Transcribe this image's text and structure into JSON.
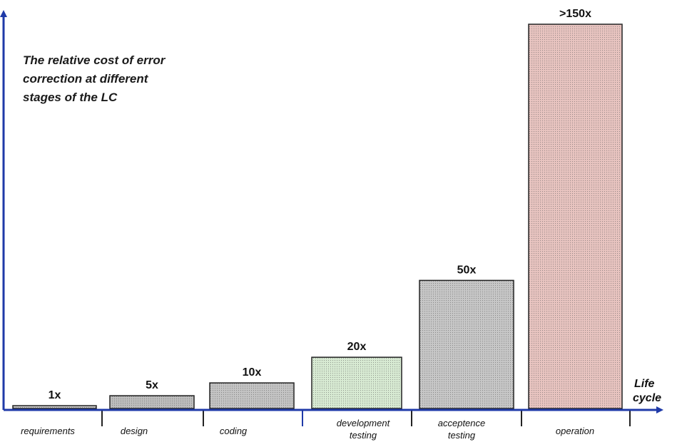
{
  "chart_data": {
    "type": "bar",
    "title_lines": [
      "The relative cost of error",
      "correction at different",
      "stages of the LC"
    ],
    "xlabel_lines": [
      "Life",
      "cycle"
    ],
    "ylabel": "",
    "categories": [
      [
        "requirements"
      ],
      [
        "design"
      ],
      [
        "coding"
      ],
      [
        "development",
        "testing"
      ],
      [
        "acceptence",
        "testing"
      ],
      [
        "operation"
      ]
    ],
    "values": [
      1,
      5,
      10,
      20,
      50,
      150
    ],
    "value_labels": [
      "1x",
      "5x",
      "10x",
      "20x",
      "50x",
      ">150x"
    ],
    "bar_colors": [
      "#c9c9c9",
      "#bdbdbd",
      "#c4c4c4",
      "#d8ebd3",
      "#c7c7c7",
      "#e8c4c0"
    ],
    "axis_color": "#1f3aa8",
    "ylim": [
      0,
      160
    ],
    "grid": false,
    "legend": "none"
  }
}
